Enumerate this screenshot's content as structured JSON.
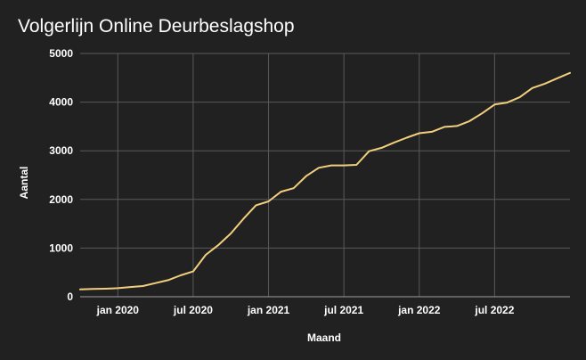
{
  "chart_data": {
    "type": "line",
    "title": "Volgerlijn Online Deurbeslagshop",
    "xlabel": "Maand",
    "ylabel": "Aantal",
    "ylim": [
      0,
      5000
    ],
    "yticks": [
      0,
      1000,
      2000,
      3000,
      4000,
      5000
    ],
    "xlim": [
      0,
      39
    ],
    "xticks": [
      {
        "pos": 3,
        "label": "jan 2020"
      },
      {
        "pos": 9,
        "label": "jul 2020"
      },
      {
        "pos": 15,
        "label": "jan 2021"
      },
      {
        "pos": 21,
        "label": "jul 2021"
      },
      {
        "pos": 27,
        "label": "jan 2022"
      },
      {
        "pos": 33,
        "label": "jul 2022"
      }
    ],
    "grid": true,
    "colors": {
      "background": "#212121",
      "grid": "#5a5a5a",
      "axis": "#9e9e9e",
      "line": "#f2cf7e",
      "text": "#ffffff"
    },
    "series": [
      {
        "name": "Aantal",
        "x": [
          0,
          1,
          2,
          3,
          4,
          5,
          6,
          7,
          8,
          9,
          10,
          11,
          12,
          13,
          14,
          15,
          16,
          17,
          18,
          19,
          20,
          21,
          22,
          23,
          24,
          25,
          26,
          27,
          28,
          29,
          30,
          31,
          32,
          33,
          34,
          35,
          36,
          37,
          38,
          39
        ],
        "values": [
          150,
          160,
          165,
          175,
          200,
          220,
          280,
          340,
          440,
          520,
          860,
          1060,
          1300,
          1600,
          1880,
          1960,
          2160,
          2230,
          2480,
          2650,
          2700,
          2700,
          2710,
          2990,
          3060,
          3170,
          3270,
          3360,
          3390,
          3490,
          3510,
          3610,
          3770,
          3950,
          3990,
          4100,
          4290,
          4380,
          4490,
          4600
        ]
      }
    ]
  }
}
